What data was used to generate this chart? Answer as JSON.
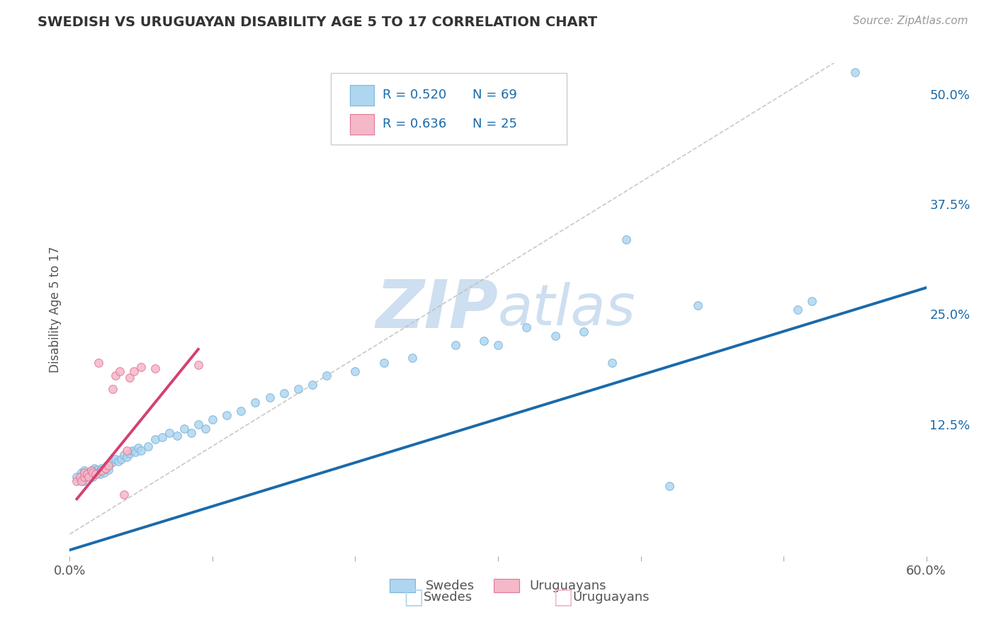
{
  "title": "SWEDISH VS URUGUAYAN DISABILITY AGE 5 TO 17 CORRELATION CHART",
  "source": "Source: ZipAtlas.com",
  "ylabel": "Disability Age 5 to 17",
  "xlim": [
    0.0,
    0.6
  ],
  "ylim": [
    -0.025,
    0.535
  ],
  "yticks_right": [
    0.125,
    0.25,
    0.375,
    0.5
  ],
  "yticklabels_right": [
    "12.5%",
    "25.0%",
    "37.5%",
    "50.0%"
  ],
  "blue_color": "#afd6f0",
  "blue_edge": "#7ab4d8",
  "pink_color": "#f5b8c8",
  "pink_edge": "#e07898",
  "blue_line_color": "#1a6aaa",
  "pink_line_color": "#d44070",
  "watermark_color": "#cddff0",
  "background_color": "#ffffff",
  "grid_color": "#cccccc",
  "blue_x": [
    0.005,
    0.007,
    0.008,
    0.009,
    0.01,
    0.01,
    0.011,
    0.012,
    0.013,
    0.014,
    0.015,
    0.016,
    0.017,
    0.018,
    0.019,
    0.02,
    0.021,
    0.022,
    0.023,
    0.024,
    0.025,
    0.026,
    0.027,
    0.028,
    0.03,
    0.032,
    0.034,
    0.036,
    0.038,
    0.04,
    0.042,
    0.044,
    0.046,
    0.048,
    0.05,
    0.055,
    0.06,
    0.065,
    0.07,
    0.075,
    0.08,
    0.085,
    0.09,
    0.095,
    0.1,
    0.11,
    0.12,
    0.13,
    0.14,
    0.15,
    0.16,
    0.17,
    0.18,
    0.2,
    0.22,
    0.24,
    0.27,
    0.29,
    0.3,
    0.32,
    0.34,
    0.36,
    0.38,
    0.42,
    0.44,
    0.51,
    0.52,
    0.55,
    0.39
  ],
  "blue_y": [
    0.065,
    0.062,
    0.07,
    0.06,
    0.072,
    0.068,
    0.065,
    0.068,
    0.07,
    0.067,
    0.072,
    0.065,
    0.075,
    0.068,
    0.073,
    0.07,
    0.068,
    0.075,
    0.072,
    0.07,
    0.075,
    0.078,
    0.073,
    0.08,
    0.082,
    0.085,
    0.083,
    0.085,
    0.09,
    0.088,
    0.092,
    0.095,
    0.093,
    0.098,
    0.095,
    0.1,
    0.108,
    0.11,
    0.115,
    0.112,
    0.12,
    0.115,
    0.125,
    0.12,
    0.13,
    0.135,
    0.14,
    0.15,
    0.155,
    0.16,
    0.165,
    0.17,
    0.18,
    0.185,
    0.195,
    0.2,
    0.215,
    0.22,
    0.215,
    0.235,
    0.225,
    0.23,
    0.195,
    0.055,
    0.26,
    0.255,
    0.265,
    0.525,
    0.335
  ],
  "pink_x": [
    0.005,
    0.007,
    0.008,
    0.01,
    0.01,
    0.012,
    0.013,
    0.015,
    0.016,
    0.018,
    0.02,
    0.022,
    0.025,
    0.025,
    0.027,
    0.03,
    0.032,
    0.035,
    0.038,
    0.04,
    0.042,
    0.045,
    0.05,
    0.06,
    0.09
  ],
  "pink_y": [
    0.06,
    0.065,
    0.06,
    0.065,
    0.07,
    0.068,
    0.065,
    0.072,
    0.07,
    0.068,
    0.195,
    0.072,
    0.075,
    0.075,
    0.078,
    0.165,
    0.18,
    0.185,
    0.045,
    0.095,
    0.178,
    0.185,
    0.19,
    0.188,
    0.192
  ],
  "blue_line_x0": 0.0,
  "blue_line_y0": -0.018,
  "blue_line_x1": 0.6,
  "blue_line_y1": 0.28,
  "pink_line_x0": 0.005,
  "pink_line_y0": 0.04,
  "pink_line_x1": 0.09,
  "pink_line_y1": 0.21
}
